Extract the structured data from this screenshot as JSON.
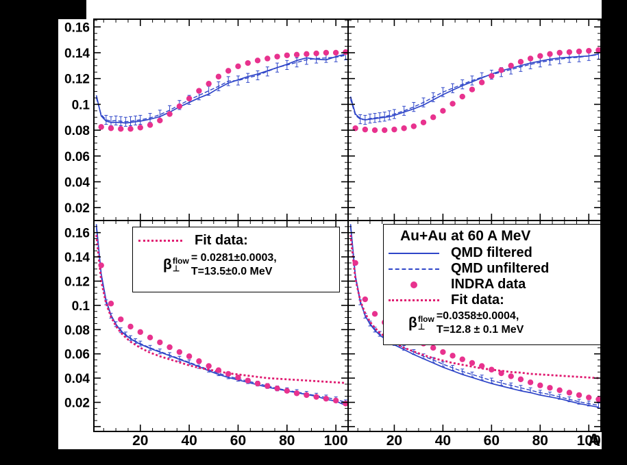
{
  "colors": {
    "background": "#000000",
    "plot_bg": "#ffffff",
    "frame": "#000000",
    "qmd_blue": "#2e45c8",
    "indra_pink": "#e8328e",
    "fit_magenta": "#e01a70"
  },
  "chart_data": {
    "type": "line",
    "xlabel": "A",
    "xlim": [
      1,
      105
    ],
    "x_ticks": [
      20,
      40,
      60,
      80,
      100
    ],
    "x_minor_step": 5,
    "y_ticks": [
      0.02,
      0.04,
      0.06,
      0.08,
      0.1,
      0.12,
      0.14,
      0.16
    ],
    "y_tick_labels": [
      "0.02",
      "0.04",
      "0.06",
      "0.08",
      "0.1",
      "0.12",
      "0.14",
      "0.16"
    ],
    "y_minor_step": 0.005,
    "x_line": [
      2,
      4,
      6,
      8,
      10,
      12,
      14,
      16,
      18,
      20,
      24,
      28,
      32,
      36,
      40,
      44,
      48,
      52,
      56,
      60,
      64,
      68,
      72,
      76,
      80,
      84,
      88,
      92,
      96,
      100,
      104
    ],
    "x_dots": [
      4,
      8,
      12,
      16,
      20,
      24,
      28,
      32,
      36,
      40,
      44,
      48,
      52,
      56,
      60,
      64,
      68,
      72,
      76,
      80,
      84,
      88,
      92,
      96,
      100,
      104
    ],
    "panels": [
      {
        "id": "top-left",
        "ylim": [
          0.01,
          0.166
        ],
        "y_labels": true,
        "x_labels": false,
        "series": [
          {
            "name": "QMD filtered",
            "style": "solid",
            "x_ref": "x_line",
            "y": [
              0.107,
              0.091,
              0.087,
              0.086,
              0.086,
              0.086,
              0.0855,
              0.086,
              0.0865,
              0.087,
              0.0885,
              0.0905,
              0.094,
              0.098,
              0.1015,
              0.105,
              0.108,
              0.1125,
              0.1165,
              0.119,
              0.1215,
              0.1235,
              0.126,
              0.1285,
              0.131,
              0.134,
              0.136,
              0.135,
              0.1345,
              0.137,
              0.139
            ]
          },
          {
            "name": "QMD unfiltered",
            "style": "dashed",
            "x_ref": "x_line",
            "yerr": 0.0035,
            "y": [
              0.105,
              0.092,
              0.088,
              0.087,
              0.0875,
              0.087,
              0.0865,
              0.087,
              0.0875,
              0.088,
              0.0895,
              0.092,
              0.0955,
              0.0995,
              0.1035,
              0.107,
              0.1105,
              0.114,
              0.118,
              0.1185,
              0.1205,
              0.1225,
              0.1255,
              0.1285,
              0.1305,
              0.1325,
              0.1345,
              0.1355,
              0.136,
              0.1365,
              0.138
            ]
          },
          {
            "name": "INDRA data",
            "style": "dots",
            "x_ref": "x_dots",
            "y": [
              0.0825,
              0.0815,
              0.081,
              0.081,
              0.082,
              0.084,
              0.0875,
              0.0925,
              0.0985,
              0.1045,
              0.1105,
              0.116,
              0.1215,
              0.126,
              0.1295,
              0.132,
              0.134,
              0.1355,
              0.137,
              0.138,
              0.1385,
              0.139,
              0.1395,
              0.14,
              0.14,
              0.1405
            ]
          }
        ]
      },
      {
        "id": "top-right",
        "ylim": [
          0.01,
          0.166
        ],
        "y_labels": false,
        "x_labels": false,
        "series": [
          {
            "name": "QMD filtered",
            "style": "solid",
            "x_ref": "x_line",
            "y": [
              0.106,
              0.0925,
              0.089,
              0.088,
              0.0885,
              0.089,
              0.0895,
              0.09,
              0.0905,
              0.0915,
              0.094,
              0.0965,
              0.0995,
              0.1035,
              0.1075,
              0.111,
              0.1145,
              0.1175,
              0.1205,
              0.1235,
              0.126,
              0.128,
              0.13,
              0.132,
              0.1335,
              0.135,
              0.136,
              0.1365,
              0.137,
              0.1375,
              0.139
            ]
          },
          {
            "name": "QMD unfiltered",
            "style": "dashed",
            "x_ref": "x_line",
            "yerr": 0.0035,
            "y": [
              0.104,
              0.0915,
              0.0885,
              0.088,
              0.089,
              0.0895,
              0.09,
              0.0905,
              0.0915,
              0.0925,
              0.095,
              0.098,
              0.1015,
              0.1055,
              0.1095,
              0.1125,
              0.1155,
              0.1185,
              0.121,
              0.123,
              0.125,
              0.127,
              0.129,
              0.131,
              0.1325,
              0.134,
              0.135,
              0.136,
              0.1365,
              0.1375,
              0.1385
            ]
          },
          {
            "name": "INDRA data",
            "style": "dots",
            "x_ref": "x_dots",
            "y": [
              0.0815,
              0.0805,
              0.08,
              0.08,
              0.0805,
              0.0815,
              0.083,
              0.086,
              0.09,
              0.095,
              0.1005,
              0.106,
              0.1115,
              0.117,
              0.122,
              0.1265,
              0.13,
              0.133,
              0.1355,
              0.1375,
              0.139,
              0.14,
              0.1405,
              0.141,
              0.1415,
              0.142
            ]
          }
        ]
      },
      {
        "id": "bottom-left",
        "ylim": [
          -0.004,
          0.17
        ],
        "y_labels": true,
        "x_labels": true,
        "series": [
          {
            "name": "QMD filtered",
            "style": "solid",
            "x_ref": "x_line",
            "y": [
              0.167,
              0.126,
              0.104,
              0.092,
              0.0845,
              0.079,
              0.0755,
              0.0725,
              0.07,
              0.068,
              0.0645,
              0.0615,
              0.0585,
              0.0555,
              0.0525,
              0.0495,
              0.046,
              0.043,
              0.0405,
              0.0385,
              0.0365,
              0.0345,
              0.0325,
              0.031,
              0.0295,
              0.028,
              0.0265,
              0.025,
              0.0225,
              0.021,
              0.0175
            ]
          },
          {
            "name": "QMD unfiltered",
            "style": "dashed",
            "x_ref": "x_line",
            "yerr": 0.002,
            "y": [
              0.164,
              0.1235,
              0.1025,
              0.0915,
              0.0845,
              0.0795,
              0.076,
              0.073,
              0.0705,
              0.0685,
              0.065,
              0.062,
              0.059,
              0.056,
              0.053,
              0.05,
              0.047,
              0.044,
              0.0415,
              0.0395,
              0.0375,
              0.0355,
              0.0335,
              0.0315,
              0.03,
              0.0285,
              0.027,
              0.0255,
              0.024,
              0.0225,
              0.02
            ]
          },
          {
            "name": "Fit data",
            "style": "fit",
            "x_ref": "x_line",
            "y": [
              0.158,
              0.12,
              0.1015,
              0.0905,
              0.083,
              0.0775,
              0.0735,
              0.07,
              0.0675,
              0.065,
              0.061,
              0.058,
              0.0555,
              0.053,
              0.0505,
              0.0485,
              0.047,
              0.0455,
              0.044,
              0.043,
              0.042,
              0.041,
              0.04,
              0.0395,
              0.039,
              0.0385,
              0.038,
              0.0375,
              0.037,
              0.0365,
              0.036
            ]
          },
          {
            "name": "INDRA data",
            "style": "dots",
            "x_ref": "x_dots",
            "y": [
              0.133,
              0.1015,
              0.0885,
              0.0825,
              0.078,
              0.0735,
              0.0695,
              0.0655,
              0.0615,
              0.058,
              0.054,
              0.05,
              0.0465,
              0.0435,
              0.0405,
              0.038,
              0.0355,
              0.0335,
              0.0315,
              0.0295,
              0.0275,
              0.026,
              0.0245,
              0.023,
              0.0215,
              0.019
            ]
          }
        ]
      },
      {
        "id": "bottom-right",
        "ylim": [
          -0.004,
          0.17
        ],
        "y_labels": false,
        "x_labels": true,
        "series": [
          {
            "name": "QMD filtered",
            "style": "solid",
            "x_ref": "x_line",
            "y": [
              0.167,
              0.1245,
              0.1035,
              0.0915,
              0.0845,
              0.0795,
              0.0755,
              0.0725,
              0.0695,
              0.0675,
              0.0635,
              0.0595,
              0.056,
              0.0525,
              0.049,
              0.046,
              0.043,
              0.0405,
              0.038,
              0.0355,
              0.0335,
              0.0315,
              0.0295,
              0.028,
              0.026,
              0.0245,
              0.023,
              0.021,
              0.019,
              0.0175,
              0.016
            ]
          },
          {
            "name": "QMD unfiltered",
            "style": "dashed",
            "x_ref": "x_line",
            "yerr": 0.002,
            "y": [
              0.1645,
              0.1225,
              0.1025,
              0.0915,
              0.085,
              0.08,
              0.0765,
              0.0735,
              0.071,
              0.069,
              0.065,
              0.0615,
              0.058,
              0.055,
              0.0515,
              0.0485,
              0.0455,
              0.043,
              0.0405,
              0.038,
              0.036,
              0.034,
              0.032,
              0.03,
              0.028,
              0.0265,
              0.0245,
              0.0225,
              0.0205,
              0.019,
              0.0175
            ]
          },
          {
            "name": "Fit data",
            "style": "fit",
            "x_ref": "x_line",
            "y": [
              0.158,
              0.122,
              0.104,
              0.0935,
              0.0865,
              0.0815,
              0.0775,
              0.0745,
              0.0715,
              0.069,
              0.065,
              0.062,
              0.059,
              0.0565,
              0.0545,
              0.0525,
              0.051,
              0.0495,
              0.048,
              0.047,
              0.046,
              0.045,
              0.0445,
              0.0435,
              0.043,
              0.0425,
              0.042,
              0.0415,
              0.041,
              0.0405,
              0.04
            ]
          },
          {
            "name": "INDRA data",
            "style": "dots",
            "x_ref": "x_dots",
            "y": [
              0.135,
              0.105,
              0.093,
              0.086,
              0.081,
              0.0765,
              0.0725,
              0.0685,
              0.065,
              0.0615,
              0.0585,
              0.0555,
              0.0525,
              0.05,
              0.047,
              0.044,
              0.0415,
              0.039,
              0.0365,
              0.034,
              0.032,
              0.03,
              0.028,
              0.026,
              0.024,
              0.0225
            ]
          }
        ]
      }
    ]
  },
  "legends": {
    "left": {
      "fit_label": "Fit data:",
      "beta_symbol": "β",
      "beta_sub": "⊥",
      "beta_sup": "flow",
      "beta_value": "= 0.0281±0.0003,",
      "temp_value": "T=13.5±0.0 MeV"
    },
    "right": {
      "title": "Au+Au at 60 A MeV",
      "entries": [
        "QMD filtered",
        "QMD unfiltered",
        "INDRA data",
        "Fit data:"
      ],
      "beta_symbol": "β",
      "beta_sub": "⊥",
      "beta_sup": "flow",
      "beta_value": "=0.0358±0.0004,",
      "temp_value": "T=12.8 ± 0.1 MeV"
    }
  }
}
